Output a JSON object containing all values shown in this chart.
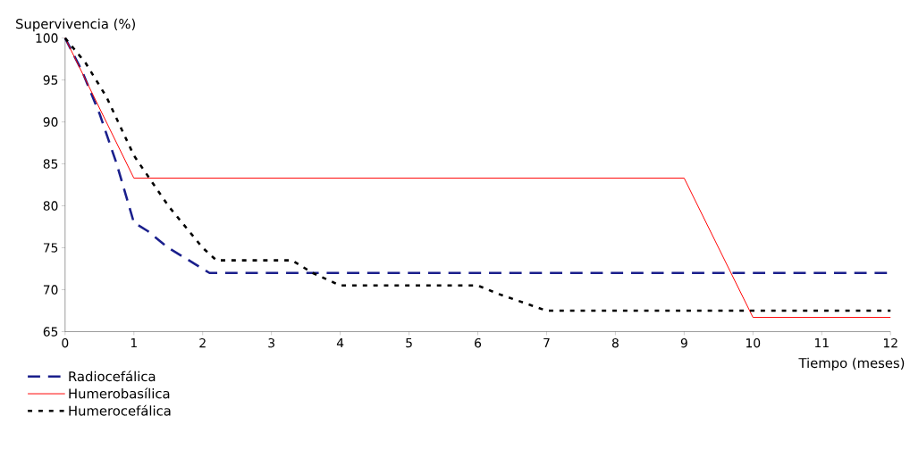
{
  "chart_data": {
    "type": "line",
    "ylabel": "Supervivencia (%)",
    "xlabel": "Tiempo (meses)",
    "xlim": [
      0,
      12
    ],
    "xticks": [
      0,
      1,
      2,
      3,
      4,
      5,
      6,
      7,
      8,
      9,
      10,
      11,
      12
    ],
    "ylim": [
      65,
      100
    ],
    "yticks": [
      65,
      70,
      75,
      80,
      85,
      90,
      95,
      100
    ],
    "grid": false,
    "legend": "bottom left",
    "series": [
      {
        "name": "Radiocefálica",
        "color": "#1a1f8c",
        "line_style": "dashed",
        "x": [
          0,
          0.25,
          0.5,
          0.75,
          1,
          1.2,
          1.5,
          1.9,
          2.1,
          12
        ],
        "values": [
          100,
          96,
          91,
          85,
          78,
          77,
          75,
          73,
          72,
          72
        ]
      },
      {
        "name": "Humerobasílica",
        "color": "#ff0000",
        "line_style": "solid",
        "x": [
          0,
          1,
          9,
          10,
          12
        ],
        "values": [
          100,
          83.3,
          83.3,
          66.7,
          66.7
        ]
      },
      {
        "name": "Humerocefálica",
        "color": "#000000",
        "line_style": "dotted",
        "x": [
          0,
          0.3,
          0.6,
          1,
          1.5,
          2,
          2.2,
          3.3,
          3.6,
          4,
          6,
          6.3,
          7,
          12
        ],
        "values": [
          100,
          97,
          93,
          86,
          80,
          75,
          73.5,
          73.5,
          72,
          70.5,
          70.5,
          69.5,
          67.5,
          67.5
        ]
      }
    ]
  }
}
